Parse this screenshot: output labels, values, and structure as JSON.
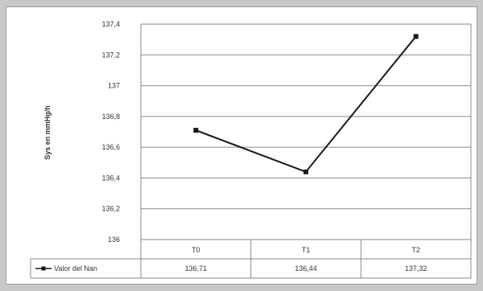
{
  "chart_data": {
    "type": "line",
    "ylabel": "Sys en mmHg/h",
    "ylim": [
      136,
      137.4
    ],
    "y_ticks": [
      "136",
      "136,2",
      "136,4",
      "136,6",
      "136,8",
      "137",
      "137,2",
      "137,4"
    ],
    "grid": true,
    "categories": [
      "T0",
      "T1",
      "T2"
    ],
    "series": [
      {
        "name": "Valor del Nan",
        "values": [
          136.71,
          136.44,
          137.32
        ],
        "value_labels": [
          "136,71",
          "136,44",
          "137,32"
        ],
        "color": "#1a1a1a"
      }
    ]
  }
}
